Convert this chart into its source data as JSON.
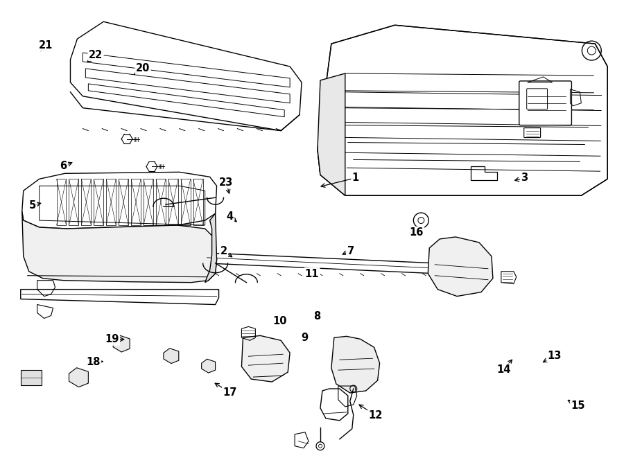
{
  "background_color": "#ffffff",
  "line_color": "#000000",
  "fig_width": 9.0,
  "fig_height": 6.61,
  "dpi": 100,
  "label_arrows": {
    "1": {
      "lpos": [
        0.57,
        0.388
      ],
      "aend": [
        0.51,
        0.408
      ]
    },
    "2": {
      "lpos": [
        0.358,
        0.548
      ],
      "aend": [
        0.375,
        0.565
      ]
    },
    "3": {
      "lpos": [
        0.842,
        0.388
      ],
      "aend": [
        0.822,
        0.395
      ]
    },
    "4": {
      "lpos": [
        0.368,
        0.472
      ],
      "aend": [
        0.382,
        0.488
      ]
    },
    "5": {
      "lpos": [
        0.05,
        0.448
      ],
      "aend": [
        0.068,
        0.442
      ]
    },
    "6": {
      "lpos": [
        0.1,
        0.362
      ],
      "aend": [
        0.118,
        0.352
      ]
    },
    "7": {
      "lpos": [
        0.562,
        0.548
      ],
      "aend": [
        0.545,
        0.558
      ]
    },
    "8": {
      "lpos": [
        0.508,
        0.692
      ],
      "aend": [
        0.51,
        0.678
      ]
    },
    "9": {
      "lpos": [
        0.488,
        0.738
      ],
      "aend": [
        0.488,
        0.722
      ]
    },
    "10": {
      "lpos": [
        0.448,
        0.702
      ],
      "aend": [
        0.452,
        0.688
      ]
    },
    "11": {
      "lpos": [
        0.5,
        0.598
      ],
      "aend": [
        0.498,
        0.61
      ]
    },
    "12": {
      "lpos": [
        0.602,
        0.908
      ],
      "aend": [
        0.572,
        0.882
      ]
    },
    "13": {
      "lpos": [
        0.89,
        0.778
      ],
      "aend": [
        0.868,
        0.795
      ]
    },
    "14": {
      "lpos": [
        0.808,
        0.808
      ],
      "aend": [
        0.825,
        0.782
      ]
    },
    "15": {
      "lpos": [
        0.928,
        0.888
      ],
      "aend": [
        0.908,
        0.872
      ]
    },
    "16": {
      "lpos": [
        0.668,
        0.508
      ],
      "aend": [
        0.652,
        0.51
      ]
    },
    "17": {
      "lpos": [
        0.368,
        0.858
      ],
      "aend": [
        0.34,
        0.835
      ]
    },
    "18": {
      "lpos": [
        0.148,
        0.792
      ],
      "aend": [
        0.168,
        0.79
      ]
    },
    "19": {
      "lpos": [
        0.178,
        0.742
      ],
      "aend": [
        0.202,
        0.742
      ]
    },
    "20": {
      "lpos": [
        0.228,
        0.148
      ],
      "aend": [
        0.21,
        0.165
      ]
    },
    "21": {
      "lpos": [
        0.072,
        0.098
      ],
      "aend": [
        0.06,
        0.115
      ]
    },
    "22": {
      "lpos": [
        0.152,
        0.118
      ],
      "aend": [
        0.135,
        0.138
      ]
    },
    "23": {
      "lpos": [
        0.362,
        0.398
      ],
      "aend": [
        0.368,
        0.428
      ]
    }
  }
}
